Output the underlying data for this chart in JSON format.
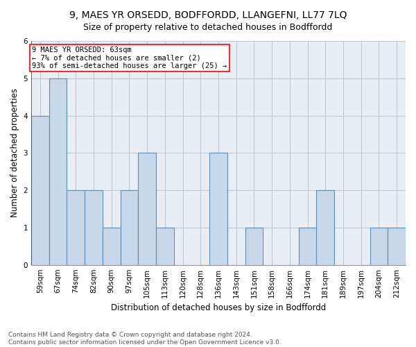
{
  "title": "9, MAES YR ORSEDD, BODFFORDD, LLANGEFNI, LL77 7LQ",
  "subtitle": "Size of property relative to detached houses in Bodffordd",
  "xlabel": "Distribution of detached houses by size in Bodffordd",
  "ylabel": "Number of detached properties",
  "footer_line1": "Contains HM Land Registry data © Crown copyright and database right 2024.",
  "footer_line2": "Contains public sector information licensed under the Open Government Licence v3.0.",
  "annotation_line1": "9 MAES YR ORSEDD: 63sqm",
  "annotation_line2": "← 7% of detached houses are smaller (2)",
  "annotation_line3": "93% of semi-detached houses are larger (25) →",
  "categories": [
    "59sqm",
    "67sqm",
    "74sqm",
    "82sqm",
    "90sqm",
    "97sqm",
    "105sqm",
    "113sqm",
    "120sqm",
    "128sqm",
    "136sqm",
    "143sqm",
    "151sqm",
    "158sqm",
    "166sqm",
    "174sqm",
    "181sqm",
    "189sqm",
    "197sqm",
    "204sqm",
    "212sqm"
  ],
  "values": [
    4,
    5,
    2,
    2,
    1,
    2,
    3,
    1,
    0,
    0,
    3,
    0,
    1,
    0,
    0,
    1,
    2,
    0,
    0,
    1,
    1
  ],
  "bar_color": "#c8d8e8",
  "bar_edge_color": "#5b8db8",
  "bar_linewidth": 0.8,
  "grid_color": "#c0c8d0",
  "background_color": "#e8eef4",
  "ylim": [
    0,
    6
  ],
  "yticks": [
    0,
    1,
    2,
    3,
    4,
    5,
    6
  ],
  "title_fontsize": 10,
  "subtitle_fontsize": 9,
  "axis_label_fontsize": 8.5,
  "tick_fontsize": 7.5,
  "annotation_fontsize": 7.5,
  "footer_fontsize": 6.5
}
